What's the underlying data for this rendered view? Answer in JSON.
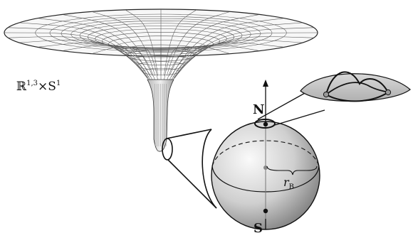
{
  "labels": {
    "space": "ℝ",
    "space_sup": "1,3",
    "times": "×",
    "circle": "S",
    "circle_sup": "1",
    "north": "N",
    "south": "S",
    "radius": "r",
    "radius_sub": "B"
  },
  "colors": {
    "line": "#111111",
    "mesh": "#555555",
    "sphere_light": "#f4f4f4",
    "sphere_dark": "#8a8a8a",
    "inset_fill": "#c8c8c8"
  }
}
